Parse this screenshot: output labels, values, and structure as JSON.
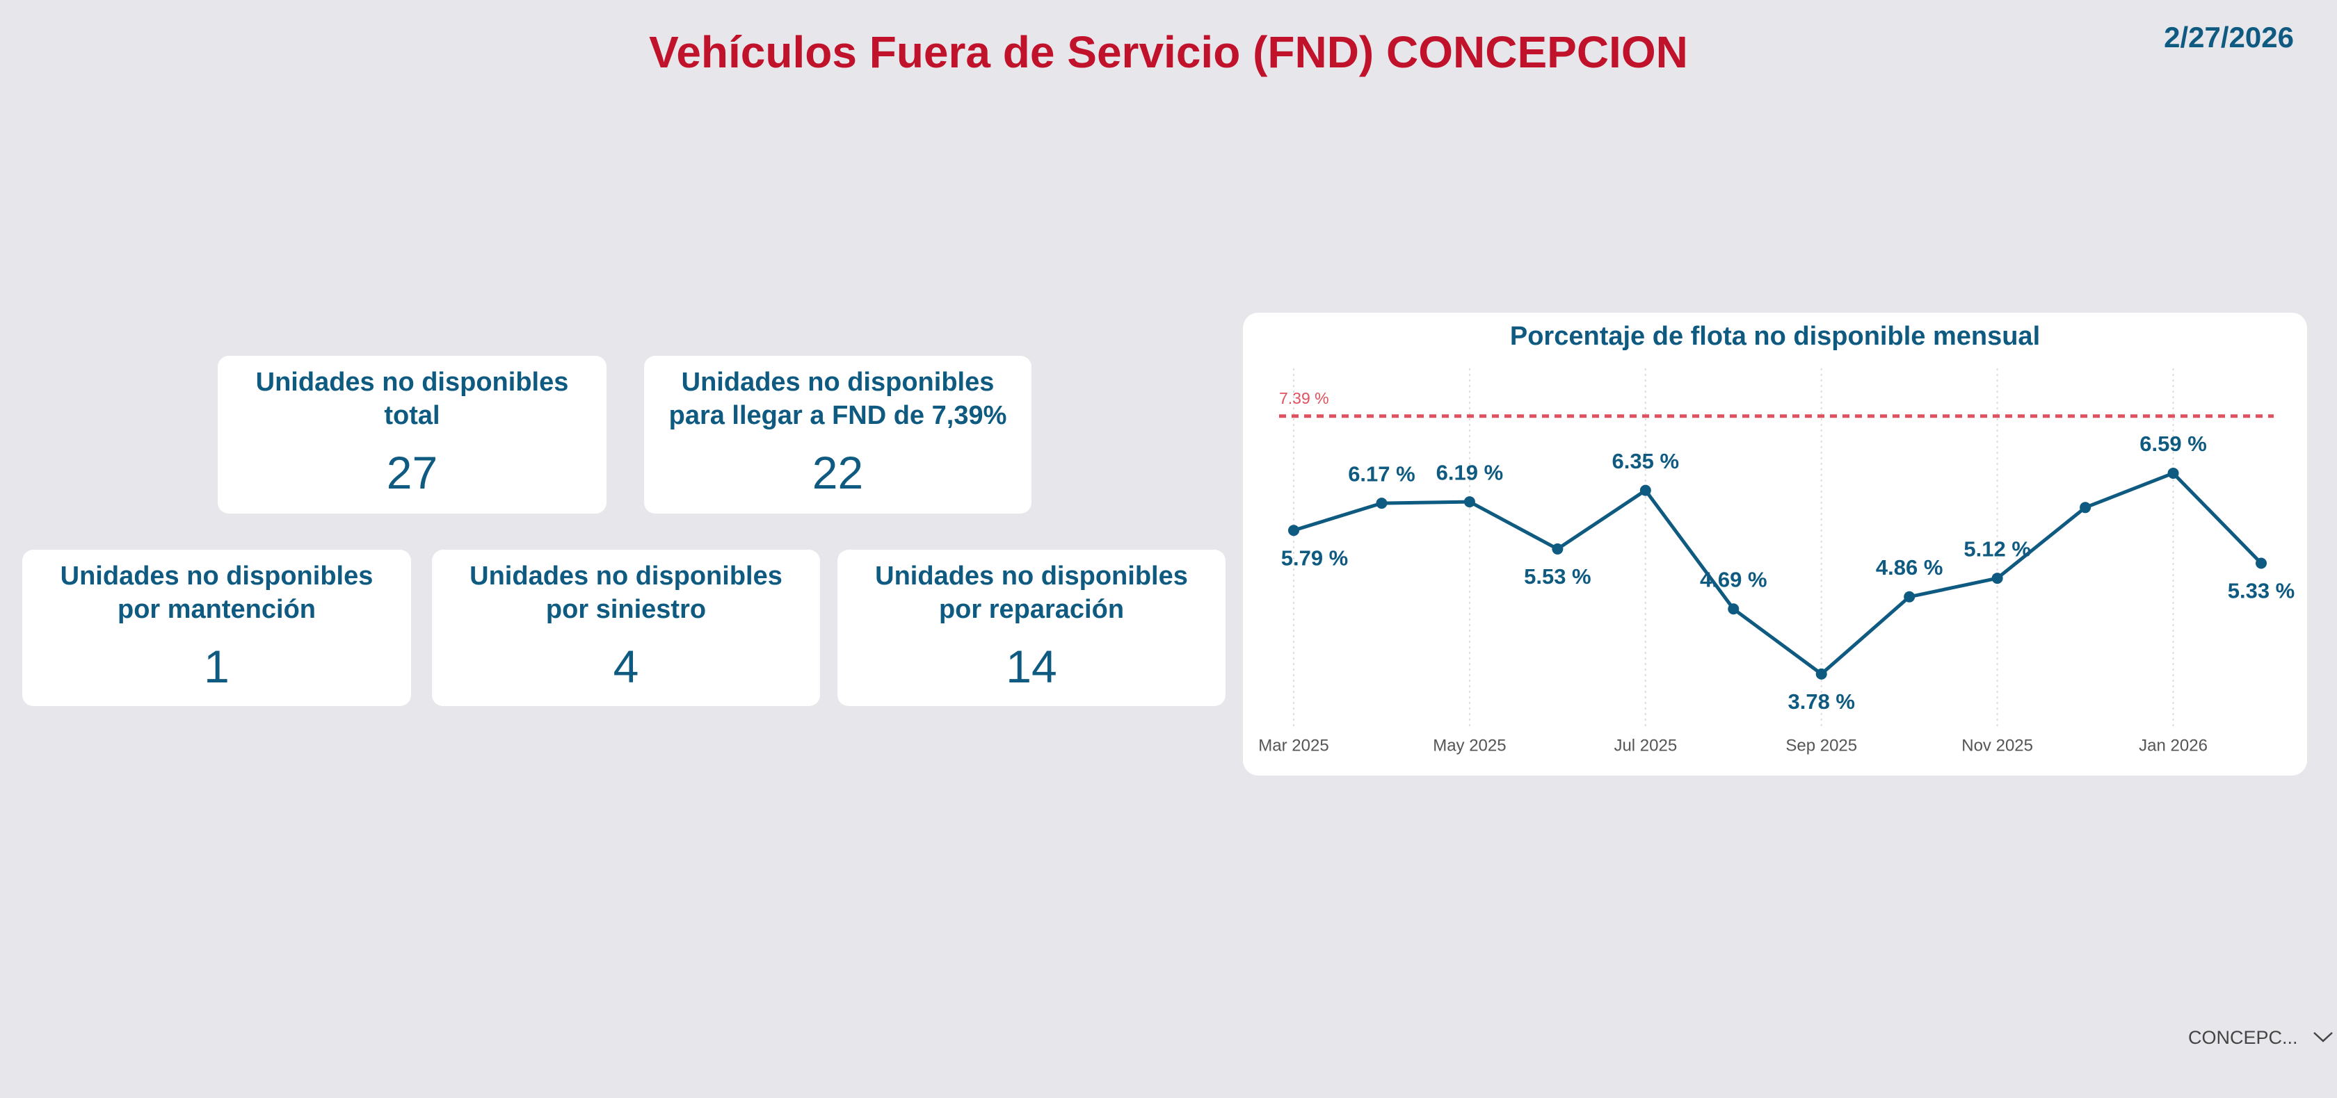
{
  "header": {
    "title": "Vehículos Fuera de Servicio (FND) CONCEPCION",
    "date": "2/27/2026"
  },
  "cards": [
    {
      "title_lines": [
        "Unidades no disponibles",
        "total"
      ],
      "value": 27
    },
    {
      "title_lines": [
        "Unidades no disponibles",
        "para llegar a FND de 7,39%"
      ],
      "value": 22
    },
    {
      "title_lines": [
        "Unidades no disponibles",
        "por mantención"
      ],
      "value": 1
    },
    {
      "title_lines": [
        "Unidades no disponibles",
        "por siniestro"
      ],
      "value": 4
    },
    {
      "title_lines": [
        "Unidades no disponibles",
        "por reparación"
      ],
      "value": 14
    }
  ],
  "slicer": {
    "label": "CONCEPC..."
  },
  "chart_data": {
    "type": "line",
    "title": "Porcentaje de flota no disponible mensual",
    "categories": [
      "Mar 2025",
      null,
      "May 2025",
      null,
      "Jul 2025",
      null,
      "Sep 2025",
      null,
      "Nov 2025",
      null,
      "Jan 2026",
      null
    ],
    "series": [
      {
        "name": "FND",
        "color": "#0e5a80",
        "values": [
          5.79,
          6.17,
          6.19,
          5.53,
          6.35,
          4.69,
          3.78,
          4.86,
          5.12,
          6.11,
          6.59,
          5.33
        ],
        "value_labels": [
          "5.79 %",
          "6.17 %",
          "6.19 %",
          "5.53 %",
          "6.35 %",
          "4.69 %",
          "3.78 %",
          "4.86 %",
          "5.12 %",
          null,
          "6.59 %",
          "5.33 %"
        ]
      }
    ],
    "reference_line": {
      "value": 7.39,
      "label": "7.39 %",
      "color": "#e0505f"
    },
    "ylim": [
      3,
      8
    ],
    "grid": true
  }
}
